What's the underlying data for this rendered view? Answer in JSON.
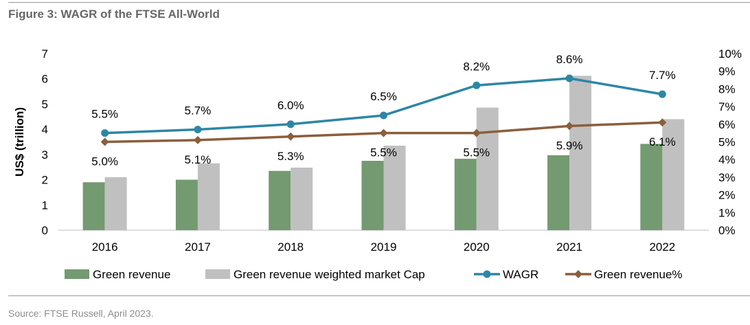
{
  "figure": {
    "title": "Figure 3: WAGR of the FTSE All-World",
    "source": "Source: FTSE Russell, April 2023."
  },
  "colors": {
    "green_revenue": "#739a70",
    "market_cap": "#c0c0c0",
    "wagr": "#2e86a6",
    "green_pct": "#8b5e3c",
    "axis": "#bfbfbf",
    "text": "#000000"
  },
  "chart_data": {
    "type": "bar",
    "title": "",
    "categories": [
      "2016",
      "2017",
      "2018",
      "2019",
      "2020",
      "2021",
      "2022"
    ],
    "ylabel": "US$ (trillion)",
    "ylim": [
      0,
      7
    ],
    "yticks": [
      "0",
      "1",
      "2",
      "3",
      "4",
      "5",
      "6",
      "7"
    ],
    "y2lim": [
      0,
      10
    ],
    "y2ticks": [
      "0%",
      "1%",
      "2%",
      "3%",
      "4%",
      "5%",
      "6%",
      "7%",
      "8%",
      "9%",
      "10%"
    ],
    "legend_position": "bottom",
    "grid": false,
    "series": [
      {
        "name": "Green revenue",
        "type": "bar",
        "axis": "left",
        "values": [
          1.9,
          2.0,
          2.35,
          2.75,
          2.83,
          2.97,
          3.42
        ]
      },
      {
        "name": "Green revenue weighted market Cap",
        "type": "bar",
        "axis": "left",
        "values": [
          2.1,
          2.65,
          2.48,
          3.35,
          4.86,
          6.12,
          4.4
        ]
      },
      {
        "name": "WAGR",
        "type": "line",
        "axis": "right",
        "values": [
          5.5,
          5.7,
          6.0,
          6.5,
          8.2,
          8.6,
          7.7
        ],
        "labels": [
          "5.5%",
          "5.7%",
          "6.0%",
          "6.5%",
          "8.2%",
          "8.6%",
          "7.7%"
        ]
      },
      {
        "name": "Green revenue%",
        "type": "line",
        "axis": "right",
        "values": [
          5.0,
          5.1,
          5.3,
          5.5,
          5.5,
          5.9,
          6.1
        ],
        "labels": [
          "5.0%",
          "5.1%",
          "5.3%",
          "5.5%",
          "5.5%",
          "5.9%",
          "6.1%"
        ]
      }
    ]
  }
}
